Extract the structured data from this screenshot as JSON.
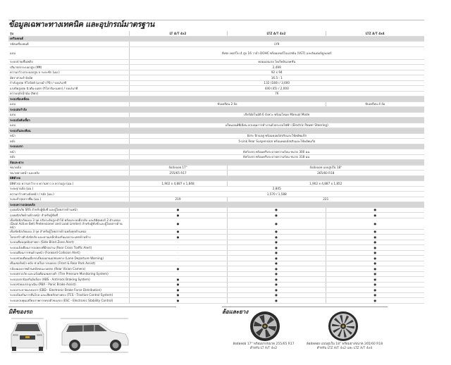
{
  "title": "ข้อมูลเฉพาะทางเทคนิค และอุปกรณ์มาตรฐาน",
  "header": {
    "label": "รุ่น",
    "models": [
      "LT A/T 4x2",
      "LTZ A/T 4x2",
      "LTZ A/T 4x4"
    ]
  },
  "sections": [
    {
      "title": "เครื่องยนต์",
      "rows": [
        {
          "label": "รหัสเครื่องยนต์",
          "cells": [
            {
              "text": "LY9",
              "models": [
                0,
                1,
                2
              ]
            }
          ]
        },
        {
          "label": "แบบ",
          "cells": [
            {
              "text": "ดีเซล เทอร์โบ 4 สูบ 16 วาล์ว DOHC พร้อมเทอร์โบแปรผัน (VGT) และอินเตอร์คูลเลอร์",
              "models": [
                0,
                1,
                2
              ]
            }
          ]
        },
        {
          "label": "ระบบจ่ายเชื้อเพลิง",
          "cells": [
            {
              "text": "คอมมอนเรล ไดเร็คอินเจคชั่น",
              "models": [
                0,
                1,
                2
              ]
            }
          ]
        },
        {
          "label": "ปริมาตรกระบอกสูบ (ซีซี)",
          "cells": [
            {
              "text": "2,499",
              "models": [
                0,
                1,
                2
              ]
            }
          ]
        },
        {
          "label": "ความกว้างกระบอกสูบ x ระยะชัก (มม.)",
          "cells": [
            {
              "text": "92 x 94",
              "models": [
                0,
                1,
                2
              ]
            }
          ]
        },
        {
          "label": "อัตราส่วนกำลังอัด",
          "cells": [
            {
              "text": "16.5 : 1",
              "models": [
                0,
                1,
                2
              ]
            }
          ]
        },
        {
          "label": "กำลังสูงสุด กิโลวัตต์ (แรงม้า PS) / รอบ/นาที",
          "cells": [
            {
              "text": "132 (180) / 3,600",
              "models": [
                0,
                1,
                2
              ]
            }
          ]
        },
        {
          "label": "แรงบิดสูงสุด นิวตัน-เมตร (กิโลกรัม-เมตร) / รอบ/นาที",
          "cells": [
            {
              "text": "440 (45) / 2,000",
              "models": [
                0,
                1,
                2
              ]
            }
          ]
        },
        {
          "label": "ความจุถังน้ำมัน (ลิตร)",
          "cells": [
            {
              "text": "76",
              "models": [
                0,
                1,
                2
              ]
            }
          ]
        }
      ]
    },
    {
      "title": "ระบบขับเคลื่อน",
      "rows": [
        {
          "label": "แบบ",
          "cells": [
            {
              "text": "ขับเคลื่อน 2 ล้อ",
              "models": [
                0,
                1
              ]
            },
            {
              "text": "ขับเคลื่อน 4 ล้อ",
              "models": [
                2
              ]
            }
          ]
        }
      ]
    },
    {
      "title": "ระบบส่งกำลัง",
      "rows": [
        {
          "label": "แบบ",
          "cells": [
            {
              "text": "เกียร์อัตโนมัติ 6 จังหวะ พร้อมโหมด Manual Mode",
              "models": [
                0,
                1,
                2
              ]
            }
          ]
        }
      ]
    },
    {
      "title": "ระบบบังคับเลี้ยว",
      "rows": [
        {
          "label": "แบบ",
          "cells": [
            {
              "text": "แร็คแอนด์พีเนียน ควบคุมการทำงานด้วยระบบไฟฟ้า (Electric Power Steering)",
              "models": [
                0,
                1,
                2
              ]
            }
          ]
        }
      ]
    },
    {
      "title": "ระบบกันสะเทือน",
      "rows": [
        {
          "label": "หน้า",
          "cells": [
            {
              "text": "อิสระ ปีกนกคู่ พร้อมคอยล์สปริงและโช้คอัพแก๊ส",
              "models": [
                0,
                1,
                2
              ]
            }
          ]
        },
        {
          "label": "หลัง",
          "cells": [
            {
              "text": "5-Link Rear Suspension พร้อมคอยล์สปริงและโช้คอัพแก๊ส",
              "models": [
                0,
                1,
                2
              ]
            }
          ]
        }
      ]
    },
    {
      "title": "ระบบเบรก",
      "rows": [
        {
          "label": "หน้า",
          "cells": [
            {
              "text": "ดิสก์เบรก พร้อมครีบระบายความร้อน ขนาด 300 มม.",
              "models": [
                0,
                1,
                2
              ]
            }
          ]
        },
        {
          "label": "หลัง",
          "cells": [
            {
              "text": "ดิสก์เบรก พร้อมครีบระบายความร้อน ขนาด 318 มม.",
              "models": [
                0,
                1,
                2
              ]
            }
          ]
        }
      ]
    },
    {
      "title": "ล้อและยาง",
      "rows": [
        {
          "label": "ขนาดล้อ",
          "cells": [
            {
              "text": "ล้ออัลลอย 17\"",
              "models": [
                0
              ]
            },
            {
              "text": "ล้ออัลลอย แบบสูบใน 18\"",
              "models": [
                1,
                2
              ]
            }
          ]
        },
        {
          "label": "ขนาดยางหน้า และหลัง",
          "cells": [
            {
              "text": "255/65 R17",
              "models": [
                0
              ]
            },
            {
              "text": "265/60 R18",
              "models": [
                1,
                2
              ]
            }
          ]
        }
      ]
    },
    {
      "title": "มิติตัวรถ",
      "rows": [
        {
          "label": "มิติตัวรถ ความกว้าง x ความยาว x ความสูง (มม.)",
          "cells": [
            {
              "text": "1,902 x 4,887 x 1,848",
              "models": [
                0
              ]
            },
            {
              "text": "1,902 x 4,887 x 1,852",
              "models": [
                1,
                2
              ]
            }
          ]
        },
        {
          "label": "ระยะฐานล้อ (มม.)",
          "cells": [
            {
              "text": "2,845",
              "models": [
                0,
                1,
                2
              ]
            }
          ]
        },
        {
          "label": "ความกว้างช่วงล้อหน้า / หลัง (มม.)",
          "cells": [
            {
              "text": "1,570 / 1,588",
              "models": [
                0,
                1,
                2
              ]
            }
          ]
        },
        {
          "label": "ระยะต่ำสุดจากพื้น (มม.)",
          "cells": [
            {
              "text": "219",
              "models": [
                0
              ]
            },
            {
              "text": "221",
              "models": [
                1,
                2
              ]
            }
          ]
        }
      ]
    },
    {
      "title": "ระบบความปลอดภัย",
      "rows": [
        {
          "label": "ถุงลมนิรภัย SRS สำหรับผู้ขับขี่ และผู้โดยสารด้านหน้า",
          "cells": [
            {
              "text": "●",
              "models": [
                0
              ]
            },
            {
              "text": "●",
              "models": [
                1
              ]
            },
            {
              "text": "●",
              "models": [
                2
              ]
            }
          ]
        },
        {
          "label": "ถุงลมนิรภัยด้านข้างหน้า สำหรับผู้ขับขี่",
          "cells": [
            {
              "text": "●",
              "models": [
                0
              ]
            },
            {
              "text": "●",
              "models": [
                1
              ]
            },
            {
              "text": "●",
              "models": [
                2
              ]
            }
          ]
        },
        {
          "label": "เข็มขัดนิรภัยแบบ 3 จุด ปรับระดับสูง-ต่ำได้ พร้อมระบบดึงกลับ และลิมิตเตอร์ 2 ตำแหน่ง (Dual Active Belt Pretensioner and Load Limiter) สำหรับผู้ขับขี่ และผู้โดยสารด้านหน้า",
          "cells": [
            {
              "text": "●",
              "models": [
                0
              ]
            },
            {
              "text": "●",
              "models": [
                1
              ]
            },
            {
              "text": "●",
              "models": [
                2
              ]
            }
          ]
        },
        {
          "label": "เข็มขัดนิรภัยแบบ 3 จุด สำหรับผู้โดยสารด้านหลังทุกตำแหน่ง",
          "cells": [
            {
              "text": "●",
              "models": [
                0
              ]
            },
            {
              "text": "●",
              "models": [
                1
              ]
            },
            {
              "text": "●",
              "models": [
                2
              ]
            }
          ]
        },
        {
          "label": "โครงสร้างตัวถังนิรภัย และคานเหล็กป้องกันแรงกระแทกด้านข้าง",
          "cells": [
            {
              "text": "●",
              "models": [
                0
              ]
            },
            {
              "text": "●",
              "models": [
                1
              ]
            },
            {
              "text": "●",
              "models": [
                2
              ]
            }
          ]
        },
        {
          "label": "ระบบเตือนจุดอับสายตา (Side Blind Zone Alert)",
          "cells": [
            {
              "text": "-",
              "models": [
                0
              ]
            },
            {
              "text": "●",
              "models": [
                1
              ]
            },
            {
              "text": "●",
              "models": [
                2
              ]
            }
          ]
        },
        {
          "label": "ระบบแจ้งเตือนการถอยรถที่มีรถผ่าน (Rear Cross Traffic Alert)",
          "cells": [
            {
              "text": "-",
              "models": [
                0
              ]
            },
            {
              "text": "●",
              "models": [
                1
              ]
            },
            {
              "text": "●",
              "models": [
                2
              ]
            }
          ]
        },
        {
          "label": "ระบบเตือนการชนด้านหน้า (Forward Collision Alert)",
          "cells": [
            {
              "text": "-",
              "models": [
                0
              ]
            },
            {
              "text": "●",
              "models": [
                1
              ]
            },
            {
              "text": "●",
              "models": [
                2
              ]
            }
          ]
        },
        {
          "label": "ระบบช่วยเตือนเมื่อรถเบี่ยงออกนอกช่องทาง (Lane Departure Warning)",
          "cells": [
            {
              "text": "-",
              "models": [
                0
              ]
            },
            {
              "text": "●",
              "models": [
                1
              ]
            },
            {
              "text": "●",
              "models": [
                2
              ]
            }
          ]
        },
        {
          "label": "เซ็นเซอร์หน้า-หลัง ช่วยในการจอดรถ (Front & Rear Park Assist)",
          "cells": [
            {
              "text": "-",
              "models": [
                0
              ]
            },
            {
              "text": "●",
              "models": [
                1
              ]
            },
            {
              "text": "●",
              "models": [
                2
              ]
            }
          ]
        },
        {
          "label": "กล้องมองภาพด้านหลังขณะถอยรถ (Rear Vision Camera)",
          "cells": [
            {
              "text": "●",
              "models": [
                0
              ]
            },
            {
              "text": "●",
              "models": [
                1
              ]
            },
            {
              "text": "●",
              "models": [
                2
              ]
            }
          ]
        },
        {
          "label": "ระบบตรวจวัด และแจ้งเตือนลมยางต่ำ (Tire Pressure Monitoring System)",
          "cells": [
            {
              "text": "-",
              "models": [
                0
              ]
            },
            {
              "text": "●",
              "models": [
                1
              ]
            },
            {
              "text": "●",
              "models": [
                2
              ]
            }
          ]
        },
        {
          "label": "ระบบเบรกป้องกันล้อล็อก (ABS - Anti-lock Braking System)",
          "cells": [
            {
              "text": "●",
              "models": [
                0
              ]
            },
            {
              "text": "●",
              "models": [
                1
              ]
            },
            {
              "text": "●",
              "models": [
                2
              ]
            }
          ]
        },
        {
          "label": "ระบบช่วยเบรกฉุกเฉิน (PBA - Panic Brake Assist)",
          "cells": [
            {
              "text": "●",
              "models": [
                0
              ]
            },
            {
              "text": "●",
              "models": [
                1
              ]
            },
            {
              "text": "●",
              "models": [
                2
              ]
            }
          ]
        },
        {
          "label": "ระบบกระจายแรงเบรก (EBD - Electronic Brake Force Distribution)",
          "cells": [
            {
              "text": "●",
              "models": [
                0
              ]
            },
            {
              "text": "●",
              "models": [
                1
              ]
            },
            {
              "text": "●",
              "models": [
                2
              ]
            }
          ]
        },
        {
          "label": "ระบบป้องกันการลื่นไถล และเสียหลักทางตรง (TCS - Traction Control System)",
          "cells": [
            {
              "text": "●",
              "models": [
                0
              ]
            },
            {
              "text": "●",
              "models": [
                1
              ]
            },
            {
              "text": "●",
              "models": [
                2
              ]
            }
          ]
        },
        {
          "label": "ระบบควบคุมเสถียรภาพการทรงตัวของรถ (ESC - Electronic Stability Control)",
          "cells": [
            {
              "text": "●",
              "models": [
                0
              ]
            },
            {
              "text": "●",
              "models": [
                1
              ]
            },
            {
              "text": "●",
              "models": [
                2
              ]
            }
          ]
        }
      ]
    }
  ],
  "dimensions_section": {
    "title": "มิติของรถ"
  },
  "wheels_section": {
    "title": "ล้อและยาง",
    "wheels": [
      {
        "caption_line1": "ล้ออัลลอย 17\" พร้อมยางขนาด 255/65 R17",
        "caption_line2": "สำหรับ LT A/T 4x2"
      },
      {
        "caption_line1": "ล้ออัลลอย แบบสูบใน 18\" พร้อมยางขนาด 265/60 R18",
        "caption_line2": "สำหรับ LTZ A/T 4x2 และ LTZ A/T 4x4"
      }
    ]
  }
}
